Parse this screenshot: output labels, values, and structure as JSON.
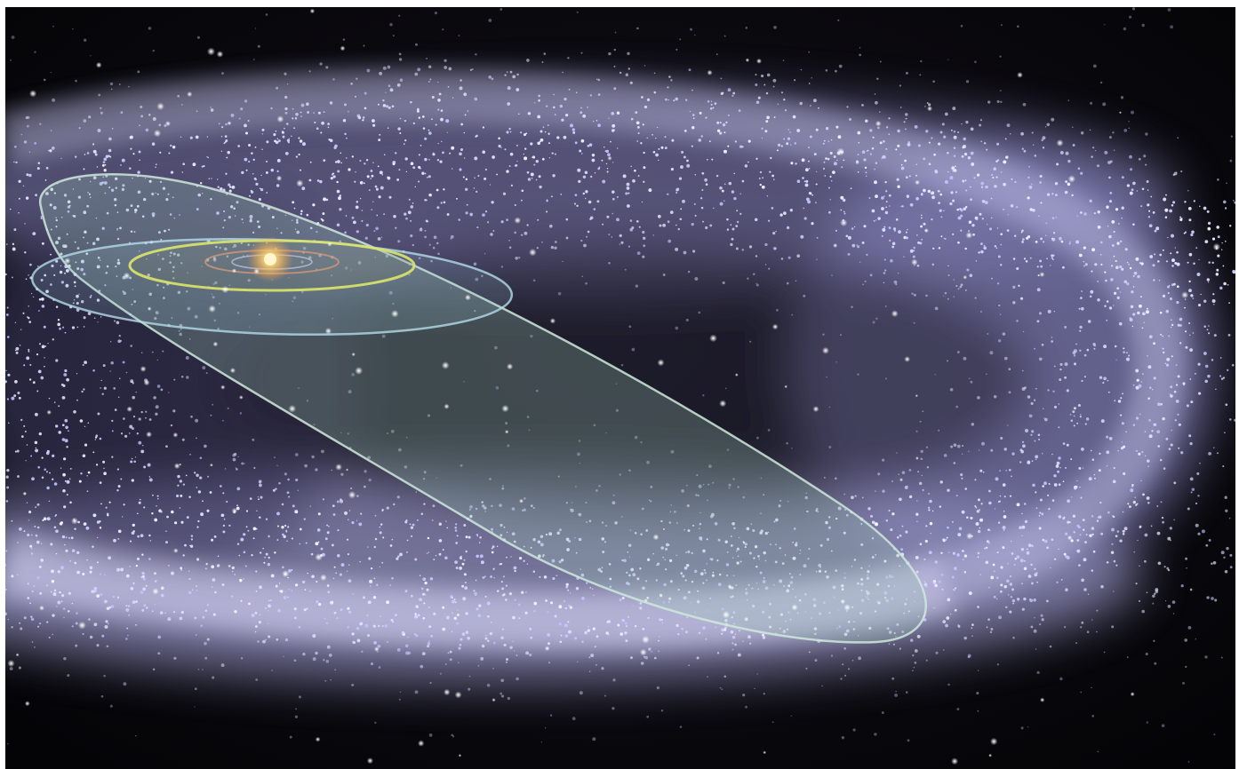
{
  "image": {
    "subject": "oort-cloud-illustration",
    "colors": {
      "space": "#060608",
      "cloud": "#c9c8f0",
      "cloud_edge": "#8f8fd0",
      "orbit_outer": "#b7d9c7",
      "orbit_kuiper": "#a9d5e6",
      "orbit_inner": "#d6e36a",
      "sun": "#ffd36e"
    }
  }
}
